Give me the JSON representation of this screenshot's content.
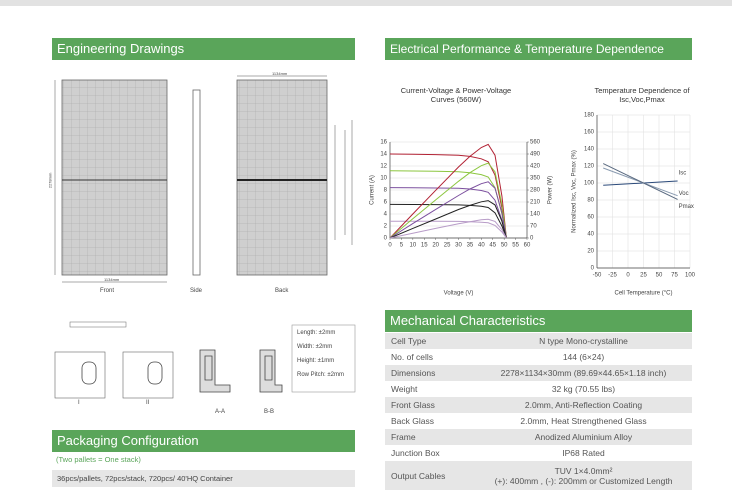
{
  "sections": {
    "engineering": "Engineering Drawings",
    "electrical": "Electrical Performance & Temperature Dependence",
    "mechanical": "Mechanical Characteristics",
    "packaging": "Packaging Configuration"
  },
  "drawings": {
    "views": [
      "Front",
      "Side",
      "Back"
    ],
    "dimensions": [
      "1134mm",
      "2278mm",
      "1134mm"
    ],
    "tolerances": [
      "Length: ±2mm",
      "Width: ±2mm",
      "Height: ±1mm",
      "Row Pitch: ±2mm"
    ],
    "sections": [
      "I",
      "II",
      "A-A",
      "B-B"
    ]
  },
  "packaging": {
    "note": "(Two pallets = One stack)",
    "rows": [
      "36pcs/pallets, 72pcs/stack, 720pcs/ 40'HQ Container"
    ]
  },
  "mechanical": {
    "rows": [
      {
        "label": "Cell Type",
        "lines": [
          "N type Mono-crystalline"
        ]
      },
      {
        "label": "No. of cells",
        "lines": [
          "144 (6×24)"
        ]
      },
      {
        "label": "Dimensions",
        "lines": [
          "2278×1134×30mm (89.69×44.65×1.18 inch)"
        ]
      },
      {
        "label": "Weight",
        "lines": [
          "32 kg (70.55 lbs)"
        ]
      },
      {
        "label": "Front Glass",
        "lines": [
          "2.0mm, Anti-Reflection Coating"
        ]
      },
      {
        "label": "Back Glass",
        "lines": [
          "2.0mm, Heat Strengthened Glass"
        ]
      },
      {
        "label": "Frame",
        "lines": [
          "Anodized Aluminium Alloy"
        ]
      },
      {
        "label": "Junction Box",
        "lines": [
          "IP68 Rated"
        ]
      },
      {
        "label": "Output Cables",
        "lines": [
          "TUV 1×4.0mm²",
          "(+): 400mm , (-): 200mm or Customized Length"
        ]
      }
    ]
  },
  "chart_data": [
    {
      "type": "line",
      "title": "Current-Voltage & Power-Voltage Curves (560W)",
      "x_label": "Voltage (V)",
      "y_label": "Current (A)",
      "y2_label": "Power (W)",
      "x": [
        0,
        10,
        20,
        30,
        35,
        40,
        43,
        46,
        49,
        51
      ],
      "xlim": [
        0,
        60
      ],
      "xticks": [
        0,
        5,
        10,
        15,
        20,
        25,
        30,
        35,
        40,
        45,
        50,
        55,
        60
      ],
      "ylim": [
        0,
        16
      ],
      "yticks": [
        0,
        2,
        4,
        6,
        8,
        10,
        12,
        14,
        16
      ],
      "y2lim": [
        0,
        560
      ],
      "y2ticks": [
        0,
        70,
        140,
        210,
        280,
        350,
        420,
        490,
        560
      ],
      "grid": true,
      "series": [
        {
          "color": "#b22234",
          "values": [
            14,
            13.95,
            13.9,
            13.8,
            13.6,
            13.2,
            12.7,
            10.5,
            5,
            0
          ]
        },
        {
          "color": "#8cc63f",
          "values": [
            11.2,
            11.16,
            11.12,
            11.04,
            10.88,
            10.56,
            10.16,
            8.4,
            4,
            0
          ]
        },
        {
          "color": "#7b4f9e",
          "values": [
            8.4,
            8.37,
            8.34,
            8.28,
            8.16,
            7.92,
            7.62,
            6.3,
            3,
            0
          ]
        },
        {
          "color": "#222222",
          "values": [
            5.6,
            5.58,
            5.56,
            5.52,
            5.44,
            5.28,
            5.08,
            4.2,
            2,
            0
          ]
        },
        {
          "color": "#b89cc8",
          "values": [
            2.8,
            2.79,
            2.78,
            2.76,
            2.72,
            2.64,
            2.54,
            2.1,
            1,
            0
          ]
        },
        {
          "color": "#b22234",
          "axis": "y2",
          "values": [
            0,
            140,
            278,
            414,
            476,
            528,
            546,
            483,
            245,
            0
          ]
        },
        {
          "color": "#8cc63f",
          "axis": "y2",
          "values": [
            0,
            112,
            222,
            331,
            381,
            422,
            437,
            386,
            196,
            0
          ]
        },
        {
          "color": "#7b4f9e",
          "axis": "y2",
          "values": [
            0,
            84,
            167,
            248,
            286,
            317,
            328,
            290,
            147,
            0
          ]
        },
        {
          "color": "#222222",
          "axis": "y2",
          "values": [
            0,
            56,
            111,
            166,
            190,
            211,
            218,
            193,
            98,
            0
          ]
        },
        {
          "color": "#b89cc8",
          "axis": "y2",
          "values": [
            0,
            28,
            56,
            83,
            95,
            106,
            109,
            97,
            49,
            0
          ]
        }
      ]
    },
    {
      "type": "line",
      "title": "Temperature Dependence of Isc,Voc,Pmax",
      "x_label": "Cell Temperature (°C)",
      "y_label": "Normalized Isc, Voc, Pmax (%)",
      "x": [
        -40,
        25,
        80
      ],
      "xlim": [
        -50,
        100
      ],
      "xticks": [
        -50,
        -25,
        0,
        25,
        50,
        75,
        100
      ],
      "ylim": [
        0,
        180
      ],
      "yticks": [
        0,
        20,
        40,
        60,
        80,
        100,
        120,
        140,
        160,
        180
      ],
      "grid": true,
      "series": [
        {
          "name": "Isc",
          "color": "#2b4a7a",
          "values": [
            97.4,
            100,
            102.3
          ]
        },
        {
          "name": "Voc",
          "color": "#8a9bb0",
          "values": [
            117.6,
            100,
            85.1
          ]
        },
        {
          "name": "Pmax",
          "color": "#5a6a80",
          "values": [
            122.8,
            100,
            80.7
          ]
        }
      ]
    }
  ]
}
